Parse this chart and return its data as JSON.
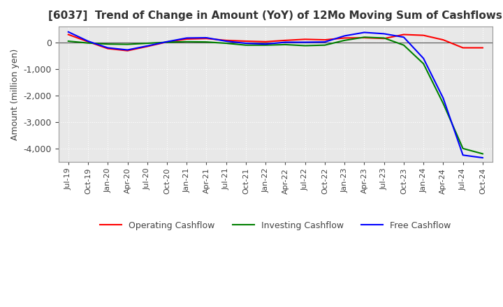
{
  "title": "[6037]  Trend of Change in Amount (YoY) of 12Mo Moving Sum of Cashflows",
  "ylabel": "Amount (million yen)",
  "ylim": [
    -4500,
    600
  ],
  "yticks": [
    0,
    -1000,
    -2000,
    -3000,
    -4000
  ],
  "line_colors": {
    "operating": "#ff0000",
    "investing": "#008000",
    "free": "#0000ff"
  },
  "legend_labels": [
    "Operating Cashflow",
    "Investing Cashflow",
    "Free Cashflow"
  ],
  "background_color": "#e8e8e8",
  "plot_bg_color": "#e8e8e8",
  "grid_color": "#ffffff",
  "dates": [
    "Jul-19",
    "Oct-19",
    "Jan-20",
    "Apr-20",
    "Jul-20",
    "Oct-20",
    "Jan-21",
    "Apr-21",
    "Jul-21",
    "Oct-21",
    "Jan-22",
    "Apr-22",
    "Jul-22",
    "Oct-22",
    "Jan-23",
    "Apr-23",
    "Jul-23",
    "Oct-23",
    "Jan-24",
    "Apr-24",
    "Jul-24",
    "Oct-24"
  ],
  "operating": [
    300,
    30,
    -230,
    -310,
    -150,
    20,
    130,
    150,
    80,
    50,
    30,
    80,
    120,
    100,
    170,
    180,
    150,
    300,
    270,
    100,
    -200,
    -200
  ],
  "investing": [
    50,
    -20,
    -60,
    -70,
    -30,
    10,
    30,
    20,
    -30,
    -100,
    -100,
    -80,
    -120,
    -100,
    80,
    200,
    170,
    -100,
    -800,
    -2300,
    -4000,
    -4200
  ],
  "free": [
    400,
    50,
    -200,
    -280,
    -130,
    30,
    170,
    180,
    50,
    -30,
    -60,
    10,
    10,
    20,
    250,
    380,
    330,
    200,
    -600,
    -2100,
    -4250,
    -4350
  ]
}
